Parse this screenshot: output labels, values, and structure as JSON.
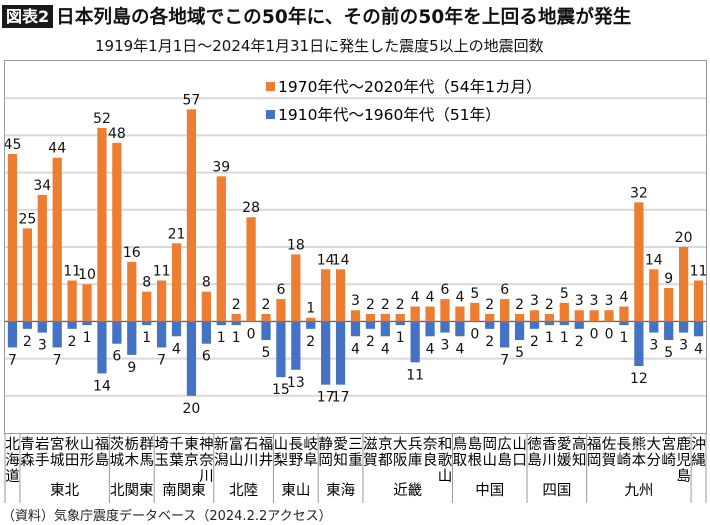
{
  "header": {
    "badge": "図表2",
    "title": "日本列島の各地域でこの50年に、その前の50年を上回る地震が発生",
    "subtitle": "1919年1月1日～2024年1月31日に発生した震度5以上の地震回数"
  },
  "source": "（資料）気象庁震度データベース（2024.2.2アクセス）",
  "chart_data": {
    "type": "bar",
    "title": "日本列島の各地域でこの50年に、その前の50年を上回る地震が発生",
    "subtitle": "1919年1月1日～2024年1月31日に発生した震度5以上の地震回数",
    "xlabel": "",
    "ylabel": "",
    "ylim": [
      -30,
      70
    ],
    "grid": true,
    "legend_position": "top-center",
    "categories": [
      "北海道",
      "青森",
      "岩手",
      "宮城",
      "秋田",
      "山形",
      "福島",
      "茨城",
      "栃木",
      "群馬",
      "埼玉",
      "千葉",
      "東京",
      "神奈川",
      "新潟",
      "富山",
      "石川",
      "福井",
      "山梨",
      "長野",
      "岐阜",
      "静岡",
      "愛知",
      "三重",
      "滋賀",
      "京都",
      "大阪",
      "兵庫",
      "奈良",
      "和歌山",
      "鳥取",
      "島根",
      "岡山",
      "広島",
      "山口",
      "徳島",
      "香川",
      "愛媛",
      "高知",
      "福岡",
      "佐賀",
      "長崎",
      "熊本",
      "大分",
      "宮崎",
      "鹿児島",
      "沖縄"
    ],
    "series": [
      {
        "name": "1970年代～2020年代（54年1カ月）",
        "color": "#ED7D31",
        "direction": "up",
        "values": [
          45,
          25,
          34,
          44,
          11,
          10,
          52,
          48,
          16,
          8,
          11,
          21,
          57,
          8,
          39,
          2,
          28,
          2,
          6,
          18,
          1,
          14,
          14,
          3,
          2,
          2,
          2,
          4,
          4,
          6,
          4,
          5,
          2,
          6,
          2,
          3,
          2,
          5,
          3,
          3,
          3,
          4,
          32,
          14,
          9,
          20,
          11
        ]
      },
      {
        "name": "1910年代～1960年代（51年）",
        "color": "#4472C4",
        "direction": "down",
        "values": [
          7,
          2,
          3,
          7,
          2,
          1,
          14,
          6,
          9,
          1,
          7,
          4,
          20,
          6,
          1,
          1,
          0,
          5,
          15,
          13,
          2,
          17,
          17,
          4,
          2,
          4,
          1,
          11,
          4,
          3,
          4,
          0,
          2,
          7,
          5,
          2,
          1,
          1,
          2,
          0,
          0,
          1,
          12,
          3,
          5,
          3,
          4
        ]
      }
    ],
    "regions": [
      {
        "name": "",
        "count": 1
      },
      {
        "name": "東北",
        "count": 6
      },
      {
        "name": "北関東",
        "count": 3
      },
      {
        "name": "南関東",
        "count": 4
      },
      {
        "name": "北陸",
        "count": 4
      },
      {
        "name": "東山",
        "count": 3
      },
      {
        "name": "東海",
        "count": 3
      },
      {
        "name": "近畿",
        "count": 6
      },
      {
        "name": "中国",
        "count": 5
      },
      {
        "name": "四国",
        "count": 4
      },
      {
        "name": "九州",
        "count": 7
      },
      {
        "name": "",
        "count": 1
      }
    ]
  }
}
